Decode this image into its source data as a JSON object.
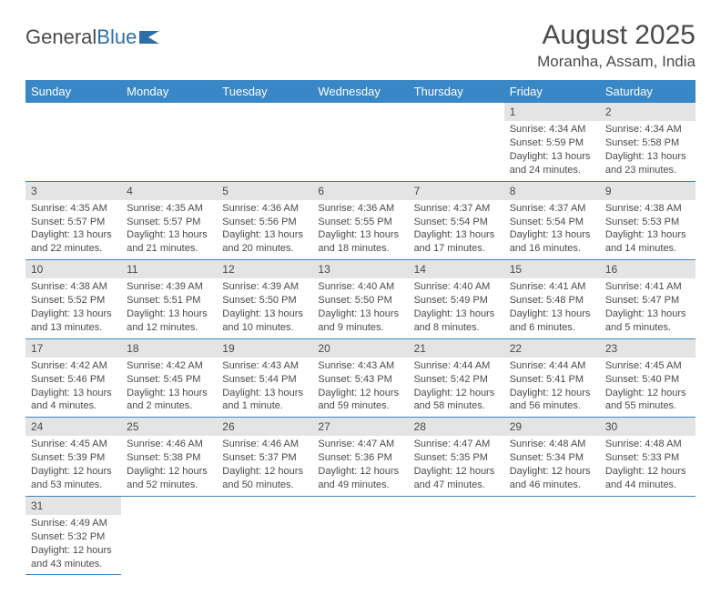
{
  "logo": {
    "text1": "General",
    "text2": "Blue"
  },
  "title": "August 2025",
  "location": "Moranha, Assam, India",
  "colors": {
    "header_bg": "#3a87c7",
    "header_text": "#ffffff",
    "daynum_bg": "#e4e4e4",
    "border": "#3a87c7",
    "text": "#4a4a4a",
    "logo_blue": "#2f6fa8"
  },
  "day_names": [
    "Sunday",
    "Monday",
    "Tuesday",
    "Wednesday",
    "Thursday",
    "Friday",
    "Saturday"
  ],
  "weeks": [
    [
      null,
      null,
      null,
      null,
      null,
      {
        "n": "1",
        "sr": "Sunrise: 4:34 AM",
        "ss": "Sunset: 5:59 PM",
        "dl": "Daylight: 13 hours and 24 minutes."
      },
      {
        "n": "2",
        "sr": "Sunrise: 4:34 AM",
        "ss": "Sunset: 5:58 PM",
        "dl": "Daylight: 13 hours and 23 minutes."
      }
    ],
    [
      {
        "n": "3",
        "sr": "Sunrise: 4:35 AM",
        "ss": "Sunset: 5:57 PM",
        "dl": "Daylight: 13 hours and 22 minutes."
      },
      {
        "n": "4",
        "sr": "Sunrise: 4:35 AM",
        "ss": "Sunset: 5:57 PM",
        "dl": "Daylight: 13 hours and 21 minutes."
      },
      {
        "n": "5",
        "sr": "Sunrise: 4:36 AM",
        "ss": "Sunset: 5:56 PM",
        "dl": "Daylight: 13 hours and 20 minutes."
      },
      {
        "n": "6",
        "sr": "Sunrise: 4:36 AM",
        "ss": "Sunset: 5:55 PM",
        "dl": "Daylight: 13 hours and 18 minutes."
      },
      {
        "n": "7",
        "sr": "Sunrise: 4:37 AM",
        "ss": "Sunset: 5:54 PM",
        "dl": "Daylight: 13 hours and 17 minutes."
      },
      {
        "n": "8",
        "sr": "Sunrise: 4:37 AM",
        "ss": "Sunset: 5:54 PM",
        "dl": "Daylight: 13 hours and 16 minutes."
      },
      {
        "n": "9",
        "sr": "Sunrise: 4:38 AM",
        "ss": "Sunset: 5:53 PM",
        "dl": "Daylight: 13 hours and 14 minutes."
      }
    ],
    [
      {
        "n": "10",
        "sr": "Sunrise: 4:38 AM",
        "ss": "Sunset: 5:52 PM",
        "dl": "Daylight: 13 hours and 13 minutes."
      },
      {
        "n": "11",
        "sr": "Sunrise: 4:39 AM",
        "ss": "Sunset: 5:51 PM",
        "dl": "Daylight: 13 hours and 12 minutes."
      },
      {
        "n": "12",
        "sr": "Sunrise: 4:39 AM",
        "ss": "Sunset: 5:50 PM",
        "dl": "Daylight: 13 hours and 10 minutes."
      },
      {
        "n": "13",
        "sr": "Sunrise: 4:40 AM",
        "ss": "Sunset: 5:50 PM",
        "dl": "Daylight: 13 hours and 9 minutes."
      },
      {
        "n": "14",
        "sr": "Sunrise: 4:40 AM",
        "ss": "Sunset: 5:49 PM",
        "dl": "Daylight: 13 hours and 8 minutes."
      },
      {
        "n": "15",
        "sr": "Sunrise: 4:41 AM",
        "ss": "Sunset: 5:48 PM",
        "dl": "Daylight: 13 hours and 6 minutes."
      },
      {
        "n": "16",
        "sr": "Sunrise: 4:41 AM",
        "ss": "Sunset: 5:47 PM",
        "dl": "Daylight: 13 hours and 5 minutes."
      }
    ],
    [
      {
        "n": "17",
        "sr": "Sunrise: 4:42 AM",
        "ss": "Sunset: 5:46 PM",
        "dl": "Daylight: 13 hours and 4 minutes."
      },
      {
        "n": "18",
        "sr": "Sunrise: 4:42 AM",
        "ss": "Sunset: 5:45 PM",
        "dl": "Daylight: 13 hours and 2 minutes."
      },
      {
        "n": "19",
        "sr": "Sunrise: 4:43 AM",
        "ss": "Sunset: 5:44 PM",
        "dl": "Daylight: 13 hours and 1 minute."
      },
      {
        "n": "20",
        "sr": "Sunrise: 4:43 AM",
        "ss": "Sunset: 5:43 PM",
        "dl": "Daylight: 12 hours and 59 minutes."
      },
      {
        "n": "21",
        "sr": "Sunrise: 4:44 AM",
        "ss": "Sunset: 5:42 PM",
        "dl": "Daylight: 12 hours and 58 minutes."
      },
      {
        "n": "22",
        "sr": "Sunrise: 4:44 AM",
        "ss": "Sunset: 5:41 PM",
        "dl": "Daylight: 12 hours and 56 minutes."
      },
      {
        "n": "23",
        "sr": "Sunrise: 4:45 AM",
        "ss": "Sunset: 5:40 PM",
        "dl": "Daylight: 12 hours and 55 minutes."
      }
    ],
    [
      {
        "n": "24",
        "sr": "Sunrise: 4:45 AM",
        "ss": "Sunset: 5:39 PM",
        "dl": "Daylight: 12 hours and 53 minutes."
      },
      {
        "n": "25",
        "sr": "Sunrise: 4:46 AM",
        "ss": "Sunset: 5:38 PM",
        "dl": "Daylight: 12 hours and 52 minutes."
      },
      {
        "n": "26",
        "sr": "Sunrise: 4:46 AM",
        "ss": "Sunset: 5:37 PM",
        "dl": "Daylight: 12 hours and 50 minutes."
      },
      {
        "n": "27",
        "sr": "Sunrise: 4:47 AM",
        "ss": "Sunset: 5:36 PM",
        "dl": "Daylight: 12 hours and 49 minutes."
      },
      {
        "n": "28",
        "sr": "Sunrise: 4:47 AM",
        "ss": "Sunset: 5:35 PM",
        "dl": "Daylight: 12 hours and 47 minutes."
      },
      {
        "n": "29",
        "sr": "Sunrise: 4:48 AM",
        "ss": "Sunset: 5:34 PM",
        "dl": "Daylight: 12 hours and 46 minutes."
      },
      {
        "n": "30",
        "sr": "Sunrise: 4:48 AM",
        "ss": "Sunset: 5:33 PM",
        "dl": "Daylight: 12 hours and 44 minutes."
      }
    ],
    [
      {
        "n": "31",
        "sr": "Sunrise: 4:49 AM",
        "ss": "Sunset: 5:32 PM",
        "dl": "Daylight: 12 hours and 43 minutes."
      },
      null,
      null,
      null,
      null,
      null,
      null
    ]
  ]
}
